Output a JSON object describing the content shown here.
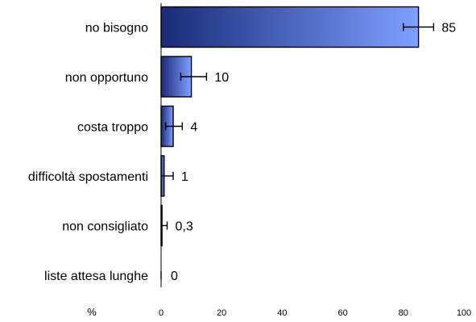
{
  "chart_data": {
    "type": "bar",
    "orientation": "horizontal",
    "title": "",
    "xlabel": "%",
    "ylabel": "",
    "categories": [
      "no bisogno",
      "non opportuno",
      "costa troppo",
      "difficoltà spostamenti",
      "non consigliato",
      "liste attesa lunghe"
    ],
    "values": [
      85,
      10,
      4,
      1,
      0.3,
      0
    ],
    "value_labels": [
      "85",
      "10",
      "4",
      "1",
      "0,3",
      "0"
    ],
    "error_bars": [
      {
        "low": 80,
        "high": 90
      },
      {
        "low": 6.5,
        "high": 15
      },
      {
        "low": 1.5,
        "high": 7
      },
      {
        "low": 0,
        "high": 4
      },
      {
        "low": 0,
        "high": 2
      },
      {
        "low": 0,
        "high": 0
      }
    ],
    "xlim": [
      0,
      100
    ],
    "xticks": [
      0,
      20,
      40,
      60,
      80,
      100
    ],
    "grid": false,
    "legend": "none",
    "bar_gradient": [
      "#1a2a78",
      "#7fa0ff"
    ],
    "bar_outline_color": "#000000"
  }
}
